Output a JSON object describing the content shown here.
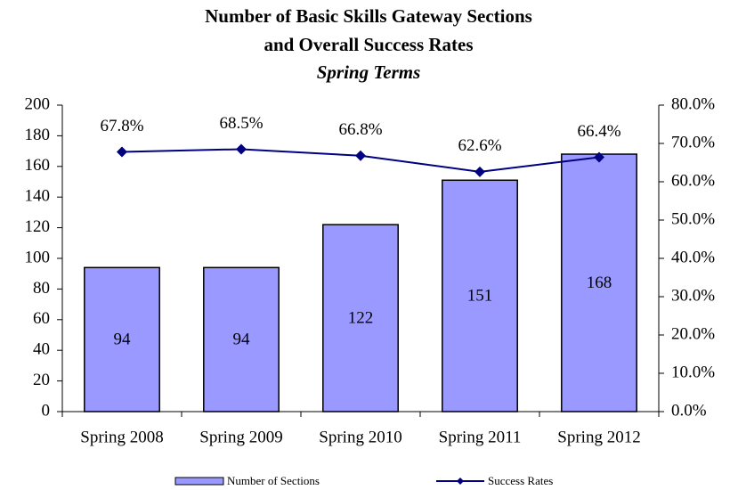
{
  "chart_data": {
    "type": "bar",
    "title": [
      "Number of Basic Skills Gateway Sections",
      "and Overall Success Rates"
    ],
    "subtitle": "Spring Terms",
    "categories": [
      "Spring 2008",
      "Spring 2009",
      "Spring 2010",
      "Spring 2011",
      "Spring 2012"
    ],
    "series": [
      {
        "name": "Number of Sections",
        "type": "bar",
        "color": "#9999ff",
        "values": [
          94,
          94,
          122,
          151,
          168
        ]
      },
      {
        "name": "Success Rates",
        "type": "line",
        "axis": "y2",
        "color": "#000080",
        "values": [
          67.8,
          68.5,
          66.8,
          62.6,
          66.4
        ],
        "value_labels": [
          "67.8%",
          "68.5%",
          "66.8%",
          "62.6%",
          "66.4%"
        ]
      }
    ],
    "ylim": [
      0,
      200
    ],
    "yticks": [
      0,
      20,
      40,
      60,
      80,
      100,
      120,
      140,
      160,
      180,
      200
    ],
    "y2lim": [
      0,
      80
    ],
    "y2ticks": [
      {
        "value": 0,
        "label": "0.0%"
      },
      {
        "value": 10,
        "label": "10.0%"
      },
      {
        "value": 20,
        "label": "20.0%"
      },
      {
        "value": 30,
        "label": "30.0%"
      },
      {
        "value": 40,
        "label": "40.0%"
      },
      {
        "value": 50,
        "label": "50.0%"
      },
      {
        "value": 60,
        "label": "60.0%"
      },
      {
        "value": 70,
        "label": "70.0%"
      },
      {
        "value": 80,
        "label": "80.0%"
      }
    ],
    "grid": false,
    "legend": "bottom"
  }
}
